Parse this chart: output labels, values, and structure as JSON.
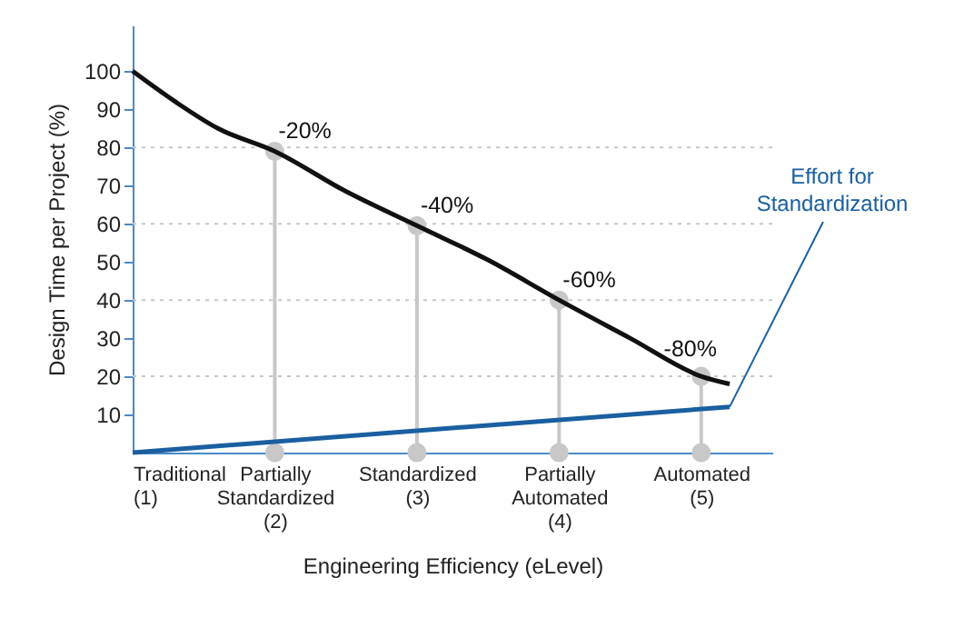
{
  "chart_data": {
    "type": "line",
    "xlabel": "Engineering Efficiency (eLevel)",
    "ylabel": "Design Time per Project (%)",
    "xlim": [
      1,
      5.5
    ],
    "ylim": [
      0,
      112
    ],
    "xticks": [
      {
        "value": 1,
        "label": "Traditional\n(1)"
      },
      {
        "value": 2,
        "label": "Partially\nStandardized\n(2)"
      },
      {
        "value": 3,
        "label": "Standardized\n(3)"
      },
      {
        "value": 4,
        "label": "Partially\nAutomated\n(4)"
      },
      {
        "value": 5,
        "label": "Automated\n(5)"
      }
    ],
    "yticks": [
      10,
      20,
      30,
      40,
      50,
      60,
      70,
      80,
      90,
      100
    ],
    "ref_lines": [
      {
        "axis": "y",
        "value": 20,
        "color": "#c8c8c8",
        "line_style": "dotted"
      },
      {
        "axis": "y",
        "value": 40,
        "color": "#c8c8c8",
        "line_style": "dotted"
      },
      {
        "axis": "y",
        "value": 60,
        "color": "#c8c8c8",
        "line_style": "dotted"
      },
      {
        "axis": "y",
        "value": 80,
        "color": "#c8c8c8",
        "line_style": "dotted"
      }
    ],
    "series": [
      {
        "type": "lollipop",
        "marker": "circle",
        "color": "#c8c8c8",
        "x": [
          2,
          3,
          4,
          5
        ],
        "values": [
          79,
          59.5,
          40,
          20
        ]
      },
      {
        "type": "scatter",
        "marker": "circle",
        "color": "#c8c8c8",
        "x": [
          2,
          3,
          4,
          5
        ],
        "values": [
          0,
          0,
          0,
          0
        ]
      },
      {
        "color": "#111111",
        "x": [
          1,
          1.3,
          1.6,
          2,
          2.5,
          3,
          3.5,
          4,
          4.5,
          5,
          5.2
        ],
        "values": [
          100,
          92,
          85,
          79,
          68.5,
          59.5,
          50.5,
          40,
          30,
          20,
          18
        ]
      },
      {
        "color": "#1a5fa0",
        "x": [
          1,
          5.2
        ],
        "values": [
          0,
          12
        ]
      }
    ],
    "annotations": [
      {
        "text": "-20%",
        "x": 2,
        "y": 79
      },
      {
        "text": "-40%",
        "x": 3,
        "y": 59.5
      },
      {
        "text": "-60%",
        "x": 4,
        "y": 40
      },
      {
        "text": "-80%",
        "x": 5,
        "y": 20
      },
      {
        "text": "Effort for\nStandardization",
        "x": 5.2,
        "y": 12
      }
    ],
    "grid": false,
    "marker": "none",
    "line_style": "solid"
  }
}
